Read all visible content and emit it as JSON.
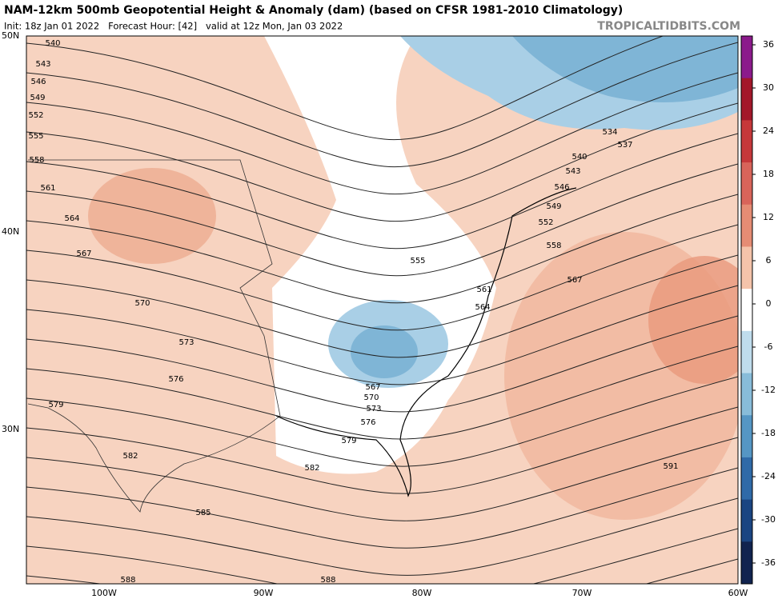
{
  "header": {
    "title": "NAM-12km 500mb Geopotential Height & Anomaly (dam) (based on CFSR 1981-2010 Climatology)",
    "subtitle": "Init: 18z Jan 01 2022   Forecast Hour: [42]   valid at 12z Mon, Jan 03 2022",
    "watermark": "TROPICALTIDBITS.COM"
  },
  "map": {
    "lat_labels": [
      "50N",
      "40N",
      "30N"
    ],
    "lon_labels": [
      "100W",
      "90W",
      "80W",
      "70W",
      "60W"
    ],
    "contour_labels": [
      540,
      543,
      546,
      549,
      552,
      555,
      558,
      561,
      564,
      567,
      570,
      573,
      576,
      579,
      582,
      585,
      588,
      588,
      591,
      534,
      537,
      540,
      543,
      546,
      549,
      552,
      558,
      567,
      561,
      564,
      555,
      567,
      570,
      573,
      576,
      579,
      582
    ]
  },
  "colorbar": {
    "ticks": [
      36,
      30,
      24,
      18,
      12,
      6,
      0,
      -6,
      -12,
      -18,
      -24,
      -30,
      -36
    ],
    "colors": [
      "#8b1a8b",
      "#a3172a",
      "#c6383a",
      "#d8645a",
      "#e58c74",
      "#f4c3aa",
      "#ffffff",
      "#bfdcec",
      "#88bcd9",
      "#5596c4",
      "#2f6aa8",
      "#1a4582",
      "#11234f"
    ]
  }
}
